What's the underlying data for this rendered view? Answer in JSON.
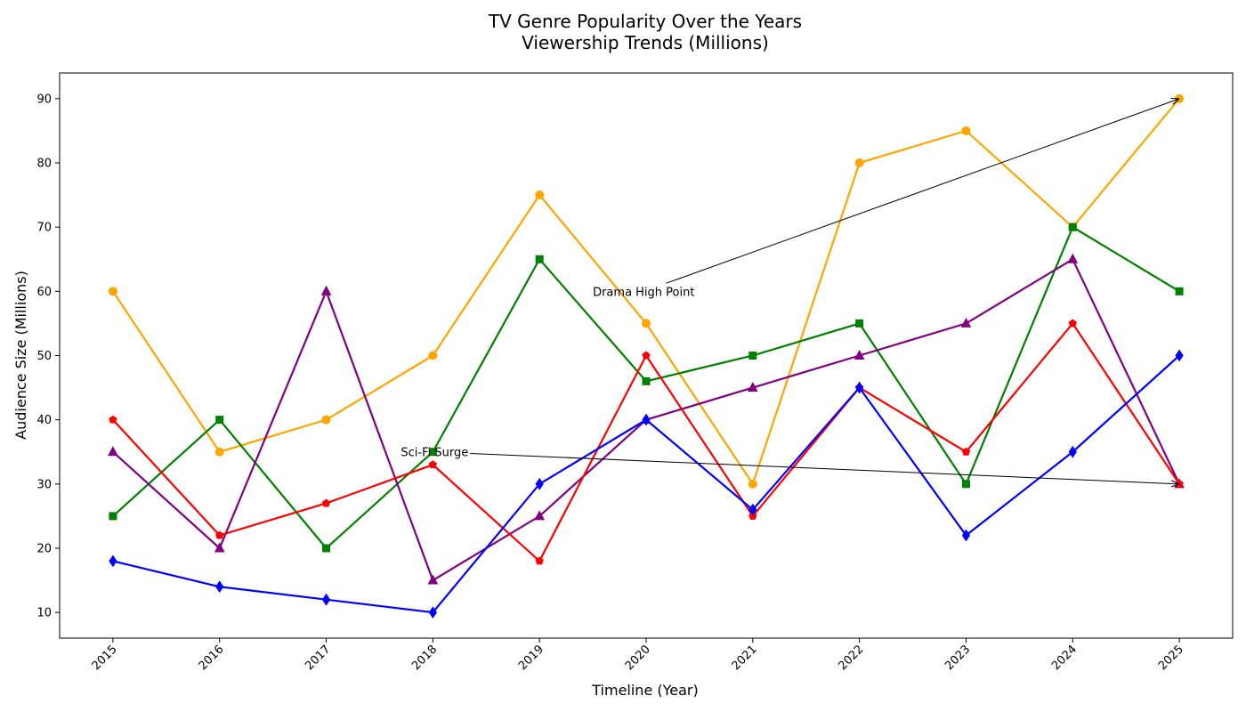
{
  "chart_data": {
    "type": "line",
    "title_line1": "TV Genre Popularity Over the Years",
    "title_line2": "Viewership Trends (Millions)",
    "xlabel": "Timeline (Year)",
    "ylabel": "Audience Size (Millions)",
    "x": [
      2015,
      2016,
      2017,
      2018,
      2019,
      2020,
      2021,
      2022,
      2023,
      2024,
      2025
    ],
    "xlim": [
      2014.5,
      2025.5
    ],
    "ylim": [
      6,
      94
    ],
    "yticks": [
      10,
      20,
      30,
      40,
      50,
      60,
      70,
      80,
      90
    ],
    "grid": false,
    "legend": "none",
    "series": [
      {
        "color": "#ffa500",
        "marker": "circle",
        "values": [
          60,
          35,
          40,
          50,
          75,
          55,
          30,
          80,
          85,
          70,
          90
        ]
      },
      {
        "color": "#008000",
        "marker": "square",
        "values": [
          25,
          40,
          20,
          35,
          65,
          46,
          50,
          55,
          30,
          70,
          60
        ]
      },
      {
        "color": "#800080",
        "marker": "triangle",
        "values": [
          35,
          20,
          60,
          15,
          25,
          40,
          45,
          50,
          55,
          65,
          30
        ]
      },
      {
        "color": "#ff0000",
        "marker": "pentagon",
        "values": [
          40,
          22,
          27,
          33,
          18,
          50,
          25,
          45,
          35,
          55,
          30
        ]
      },
      {
        "color": "#0000ff",
        "marker": "diamond",
        "values": [
          18,
          14,
          12,
          10,
          30,
          40,
          26,
          45,
          22,
          35,
          50
        ]
      }
    ],
    "annotations": [
      {
        "text": "Drama High Point",
        "xy": [
          2025,
          90
        ],
        "xytext": [
          2019.5,
          60
        ]
      },
      {
        "text": "Sci-Fi Surge",
        "xy": [
          2025,
          30
        ],
        "xytext": [
          2017.7,
          35
        ]
      }
    ]
  }
}
